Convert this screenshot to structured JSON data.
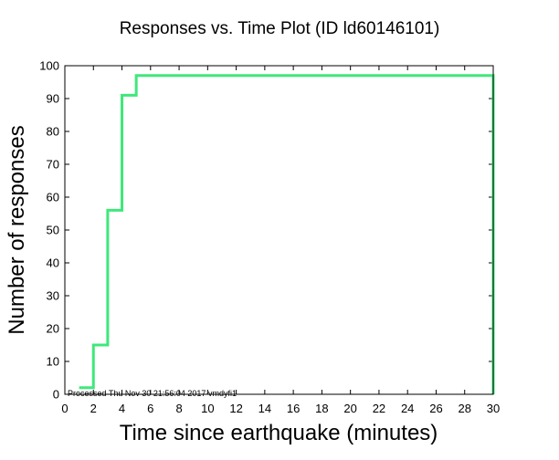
{
  "chart_data": {
    "type": "line",
    "title": "Responses vs. Time Plot (ID ld60146101)",
    "xlabel": "Time since earthquake (minutes)",
    "ylabel": "Number of responses",
    "xlim": [
      0,
      30
    ],
    "ylim": [
      0,
      100
    ],
    "xticks": [
      0,
      2,
      4,
      6,
      8,
      10,
      12,
      14,
      16,
      18,
      20,
      22,
      24,
      26,
      28,
      30
    ],
    "yticks": [
      0,
      10,
      20,
      30,
      40,
      50,
      60,
      70,
      80,
      90,
      100
    ],
    "grid": false,
    "step": true,
    "series": [
      {
        "color": "#3ee87a",
        "x": [
          1,
          2,
          3,
          4,
          5,
          30,
          30
        ],
        "y": [
          2,
          15,
          56,
          91,
          97,
          97,
          0
        ]
      }
    ],
    "annotation": "Processed Thu Nov 30 21:56:04 2017 vmdyfi1"
  }
}
